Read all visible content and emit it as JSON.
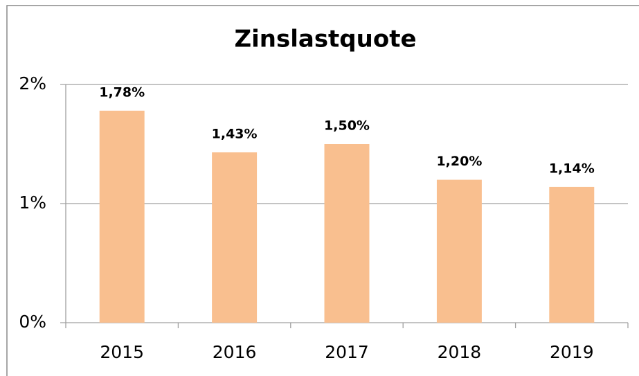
{
  "chart_data": {
    "type": "bar",
    "title": "Zinslastquote",
    "categories": [
      "2015",
      "2016",
      "2017",
      "2018",
      "2019"
    ],
    "values": [
      1.78,
      1.43,
      1.5,
      1.2,
      1.14
    ],
    "value_labels": [
      "1,78%",
      "1,43%",
      "1,50%",
      "1,20%",
      "1,14%"
    ],
    "color": "#f9bf8f",
    "ylim": [
      0,
      2
    ],
    "yticks": [
      {
        "value": 0,
        "label": "0%"
      },
      {
        "value": 1,
        "label": "1%"
      },
      {
        "value": 2,
        "label": "2%"
      }
    ],
    "grid": true
  }
}
